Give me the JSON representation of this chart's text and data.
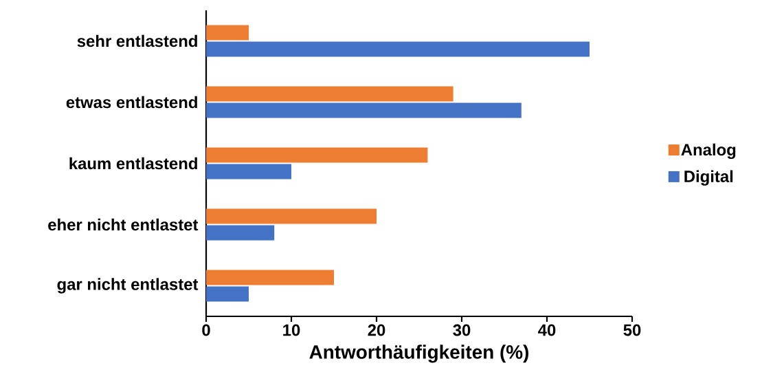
{
  "chart_data": {
    "type": "bar",
    "orientation": "horizontal",
    "xlabel": "Antworthäufigkeiten (%)",
    "categories": [
      "sehr entlastend",
      "etwas entlastend",
      "kaum entlastend",
      "eher nicht entlastet",
      "gar nicht entlastet"
    ],
    "series": [
      {
        "name": "Analog",
        "color": "#ed7d31",
        "values": [
          5,
          29,
          26,
          20,
          15
        ]
      },
      {
        "name": "Digital",
        "color": "#4472c4",
        "values": [
          45,
          37,
          10,
          8,
          5
        ]
      }
    ],
    "xlim": [
      0,
      50
    ],
    "xticks": [
      0,
      10,
      20,
      30,
      40,
      50
    ],
    "legend": "right"
  }
}
